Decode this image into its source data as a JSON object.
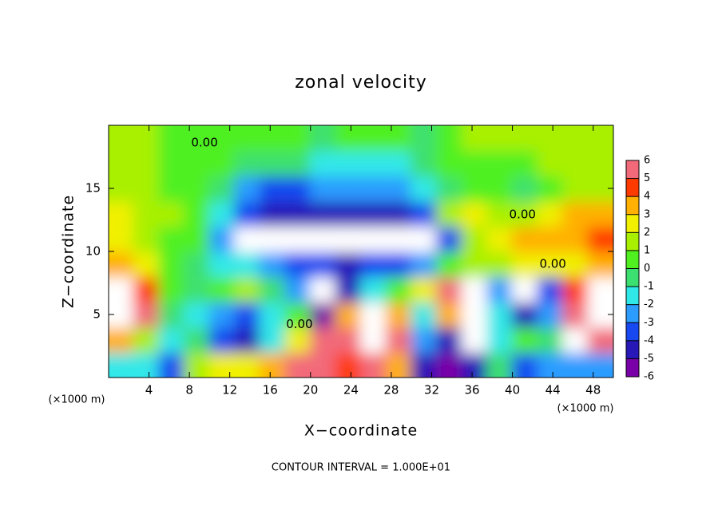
{
  "chart_data": {
    "type": "heatmap",
    "title": "zonal velocity",
    "x_label": "X−coordinate",
    "y_label": "Z−coordinate",
    "x_unit": "(×1000 m)",
    "y_unit": "(×1000 m)",
    "footnote": "CONTOUR INTERVAL = 1.000E+01",
    "xlim": [
      0,
      50
    ],
    "ylim": [
      0,
      20
    ],
    "xticks": [
      4,
      8,
      12,
      16,
      20,
      24,
      28,
      32,
      36,
      40,
      44,
      48
    ],
    "yticks": [
      5,
      10,
      15
    ],
    "x": [
      1.25,
      3.75,
      6.25,
      8.75,
      11.25,
      13.75,
      16.25,
      18.75,
      21.25,
      23.75,
      26.25,
      28.75,
      31.25,
      33.75,
      36.25,
      38.75,
      41.25,
      43.75,
      46.25,
      48.75
    ],
    "y": [
      1,
      3,
      5,
      7,
      9,
      11,
      13,
      15,
      17,
      19
    ],
    "values": [
      [
        -2,
        -2,
        -4,
        1,
        2,
        2,
        3,
        5,
        6,
        4,
        5,
        3,
        -5,
        -6,
        -5,
        -1,
        -4,
        -3,
        -3,
        -3
      ],
      [
        3,
        1,
        -2,
        -1,
        -4,
        -5,
        -2,
        2,
        6,
        5,
        8,
        5,
        -3,
        -5,
        -7,
        -2,
        0,
        -1,
        7,
        5
      ],
      [
        8,
        5,
        -1,
        -2,
        -3,
        -4,
        -2,
        0,
        -6,
        3,
        7,
        3,
        -2,
        3,
        7,
        -2,
        -5,
        -3,
        6,
        8
      ],
      [
        7,
        4,
        0,
        -1,
        0,
        1,
        -1,
        -3,
        -7,
        -5,
        -2,
        0,
        2,
        5,
        8,
        -3,
        -7,
        -4,
        4,
        7
      ],
      [
        3,
        2,
        0,
        -0.5,
        -2,
        -2,
        -3,
        -4,
        -4,
        -5,
        -4,
        -4,
        -3,
        0,
        1,
        1,
        2,
        2,
        2,
        3
      ],
      [
        2.5,
        1.5,
        0.5,
        0,
        -3,
        -7,
        -8,
        -7,
        -7,
        -7,
        -7,
        -7,
        -7,
        -4,
        1.5,
        2,
        3,
        3,
        3.5,
        4
      ],
      [
        2,
        1.5,
        1,
        0,
        -2,
        -4,
        -5,
        -5,
        -5,
        -5,
        -5,
        -5,
        -4,
        1,
        2,
        1,
        1,
        2,
        3,
        3
      ],
      [
        1.5,
        1,
        0.5,
        0,
        -1,
        -3,
        -4,
        -4,
        -3,
        -2.5,
        -3,
        -2.5,
        -2,
        -1,
        0,
        0,
        -0.5,
        0,
        1,
        1.5
      ],
      [
        1,
        1,
        0.5,
        0,
        0,
        -0.5,
        -1,
        -1,
        -1.5,
        -1.5,
        -2,
        -1.5,
        -1,
        0,
        0.5,
        0.5,
        0.5,
        1,
        1,
        1
      ],
      [
        1,
        1,
        0.5,
        0,
        0,
        0,
        0.5,
        0,
        -0.5,
        0,
        0,
        0,
        -0.5,
        0.5,
        1,
        1,
        1,
        1.5,
        1.5,
        1
      ]
    ],
    "colorbar": {
      "ticks": [
        6,
        5,
        4,
        3,
        2,
        1,
        0,
        -1,
        -2,
        -3,
        -4,
        -5,
        -6
      ],
      "colors": [
        "#7a00a8",
        "#2818b8",
        "#1848f0",
        "#2c9cff",
        "#30e8e8",
        "#3ce070",
        "#50f020",
        "#a8f000",
        "#f0f000",
        "#ffb000",
        "#ff3a00",
        "#f26a7a"
      ]
    },
    "out_of_range_color": "#ffffff",
    "annotations": [
      {
        "text": "0.00",
        "x": 9.5,
        "y": 18.6
      },
      {
        "text": "0.00",
        "x": 41,
        "y": 12.9
      },
      {
        "text": "0.00",
        "x": 44,
        "y": 9
      },
      {
        "text": "0.00",
        "x": 18.9,
        "y": 4.2
      }
    ]
  }
}
